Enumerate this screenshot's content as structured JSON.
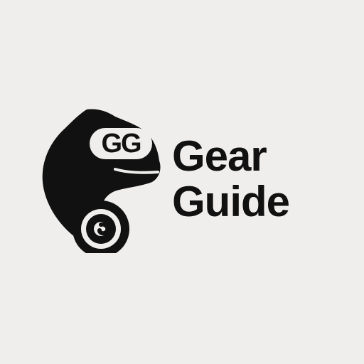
{
  "logo": {
    "icon_name": "chameleon-logo-icon",
    "eye_monogram": "GG",
    "wordmark_line_1": "Gear",
    "wordmark_line_2": "Guide"
  },
  "colors": {
    "background": "#efeeec",
    "ink": "#111111",
    "reverse": "#efeeec"
  }
}
